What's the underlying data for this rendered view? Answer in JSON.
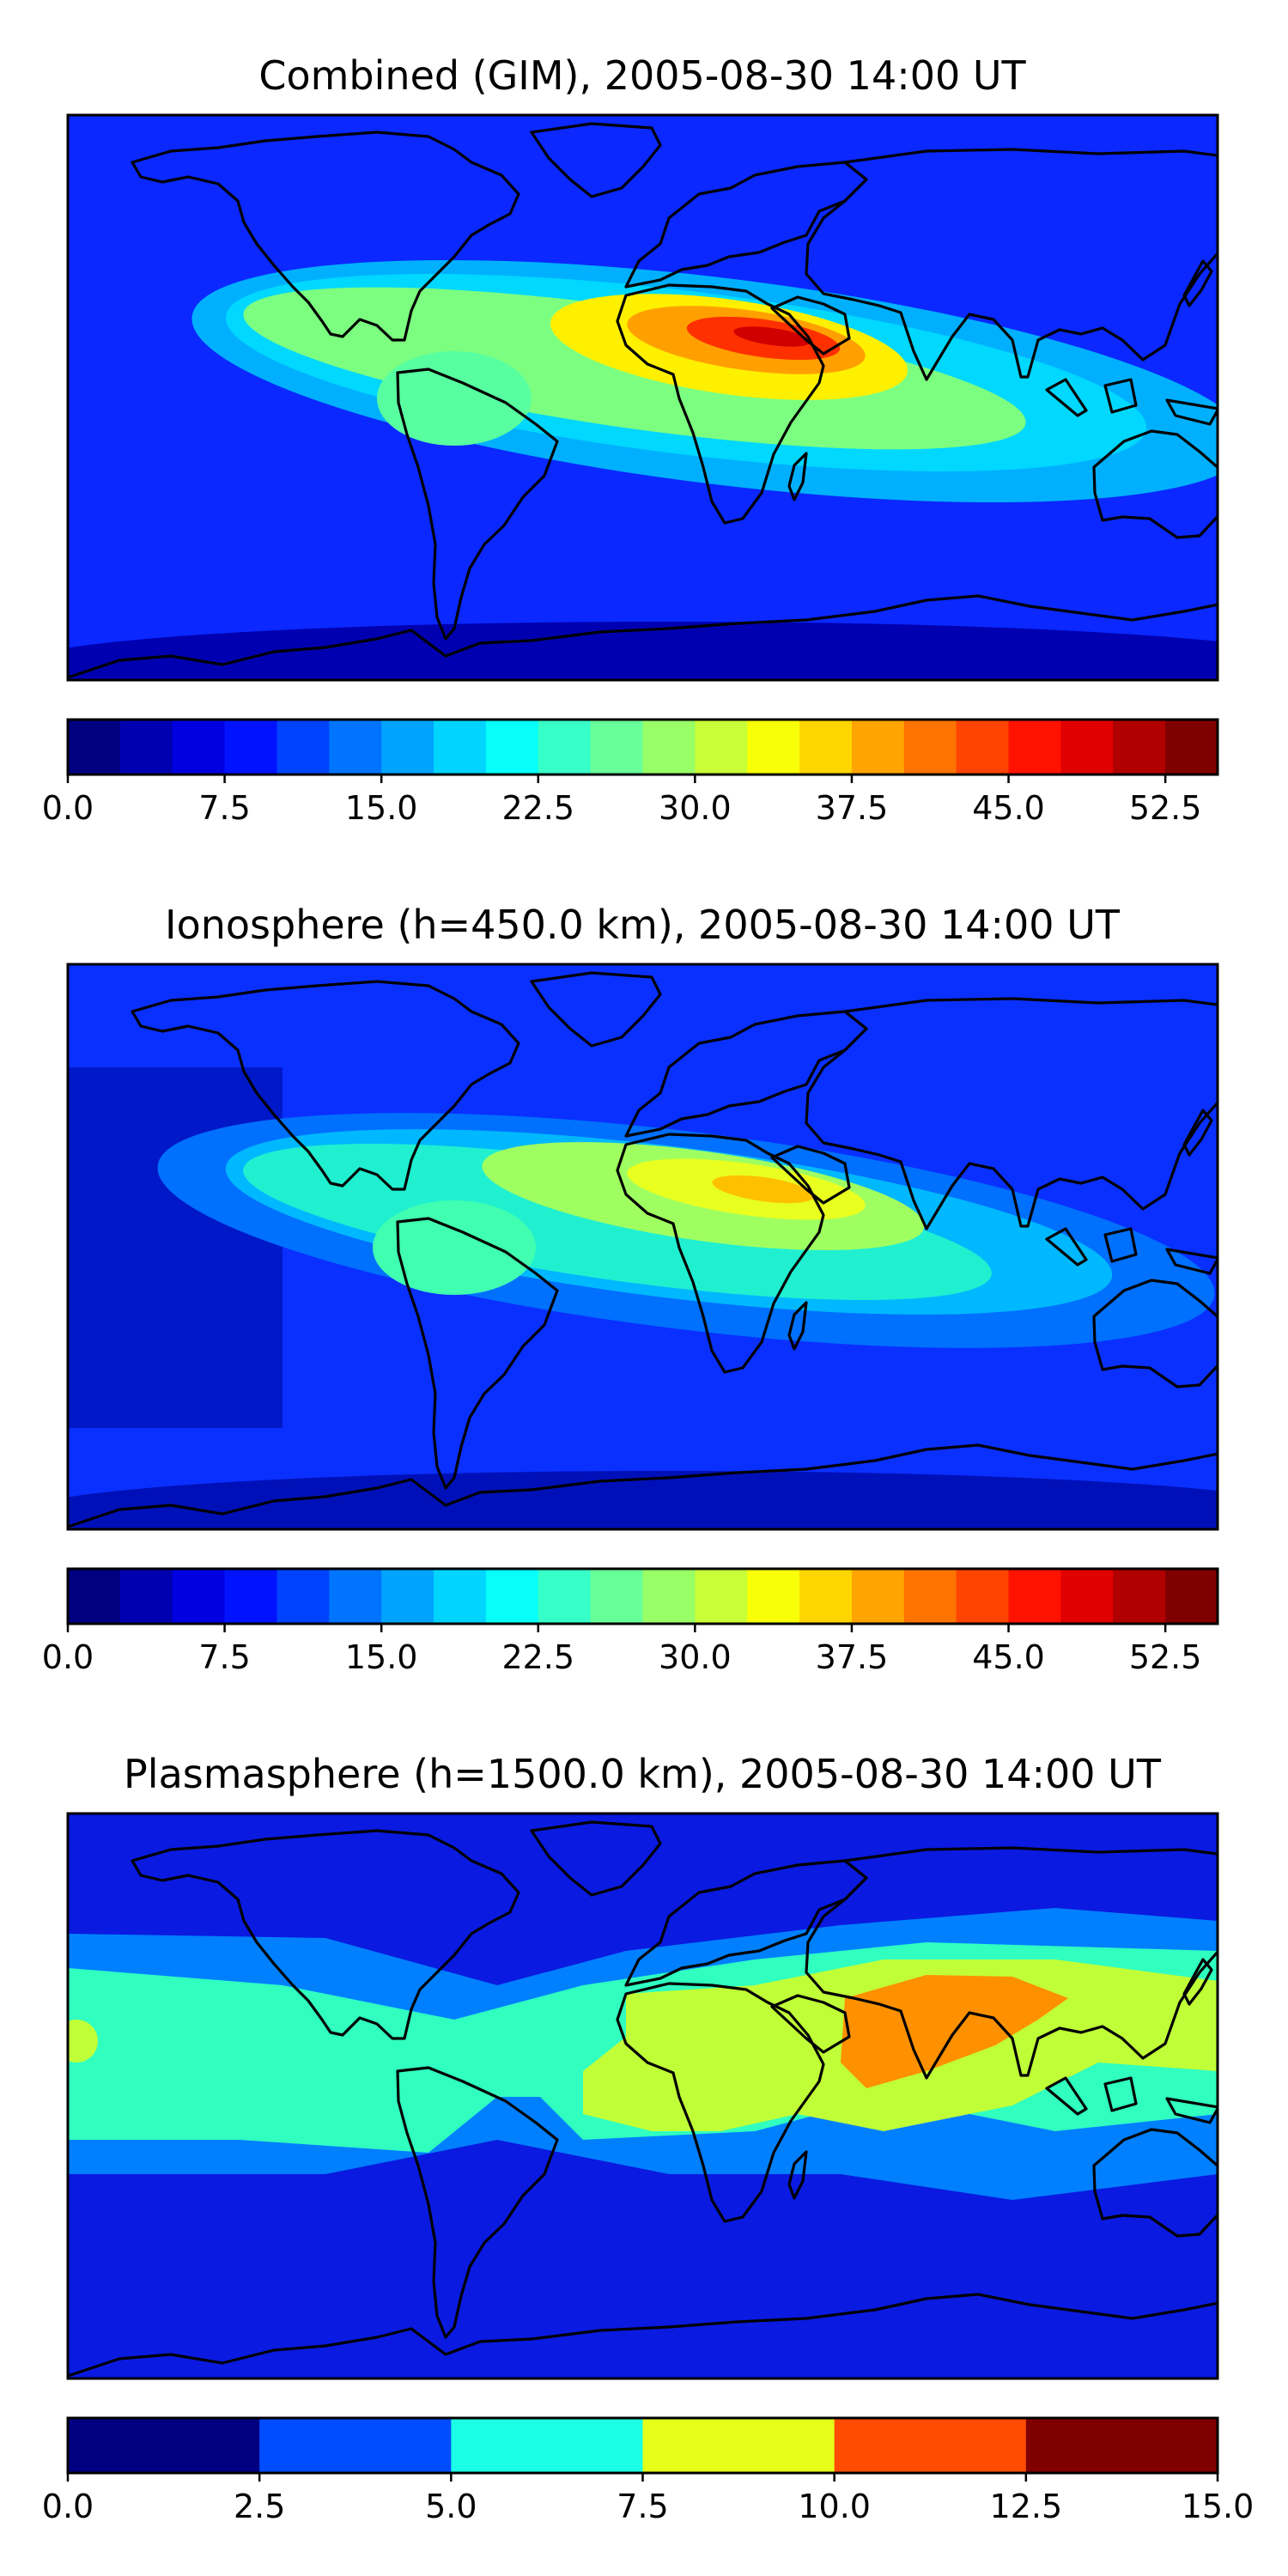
{
  "chart_data": [
    {
      "type": "heatmap",
      "title": "Combined (GIM), 2005-08-30 14:00 UT",
      "map": "world-coastlines",
      "colormap": "jet",
      "colorbar": {
        "levels": [
          0,
          2.5,
          5,
          7.5,
          10,
          12.5,
          15,
          17.5,
          20,
          22.5,
          25,
          27.5,
          30,
          32.5,
          35,
          37.5,
          40,
          42.5,
          45,
          47.5,
          50,
          52.5,
          55
        ],
        "tick_values": [
          0,
          7.5,
          15,
          22.5,
          30,
          37.5,
          45,
          52.5
        ],
        "tick_labels": [
          "0.0",
          "7.5",
          "15.0",
          "22.5",
          "30.0",
          "37.5",
          "45.0",
          "52.5"
        ]
      },
      "features": [
        {
          "name": "background",
          "value": 10
        },
        {
          "name": "equatorial-anomaly-outer",
          "value": 18
        },
        {
          "name": "equatorial-anomaly-mid",
          "value": 27
        },
        {
          "name": "north-africa-crest",
          "value": 36
        },
        {
          "name": "arabia-peak",
          "value": 49
        },
        {
          "name": "south-america-lobe",
          "value": 27
        },
        {
          "name": "southeast-asia-lobe",
          "value": 22
        },
        {
          "name": "polar-low-south",
          "value": 4
        }
      ]
    },
    {
      "type": "heatmap",
      "title": "Ionosphere  (h=450.0 km), 2005-08-30 14:00 UT",
      "map": "world-coastlines",
      "colormap": "jet",
      "colorbar": {
        "levels": [
          0,
          2.5,
          5,
          7.5,
          10,
          12.5,
          15,
          17.5,
          20,
          22.5,
          25,
          27.5,
          30,
          32.5,
          35,
          37.5,
          40,
          42.5,
          45,
          47.5,
          50,
          52.5,
          55
        ],
        "tick_values": [
          0,
          7.5,
          15,
          22.5,
          30,
          37.5,
          45,
          52.5
        ],
        "tick_labels": [
          "0.0",
          "7.5",
          "15.0",
          "22.5",
          "30.0",
          "37.5",
          "45.0",
          "52.5"
        ]
      },
      "features": [
        {
          "name": "background",
          "value": 8
        },
        {
          "name": "equatorial-anomaly-outer",
          "value": 16
        },
        {
          "name": "equatorial-anomaly-mid",
          "value": 24
        },
        {
          "name": "north-africa-crest",
          "value": 31
        },
        {
          "name": "arabia-peak",
          "value": 37
        },
        {
          "name": "south-america-lobe",
          "value": 24
        },
        {
          "name": "pacific-low",
          "value": 3
        }
      ]
    },
    {
      "type": "heatmap",
      "title": "Plasmasphere (h=1500.0 km), 2005-08-30 14:00 UT",
      "map": "world-coastlines",
      "colormap": "jet",
      "colorbar": {
        "levels": [
          0,
          2.5,
          5,
          7.5,
          10,
          12.5,
          15
        ],
        "tick_values": [
          0,
          2.5,
          5,
          7.5,
          10,
          12.5,
          15
        ],
        "tick_labels": [
          "0.0",
          "2.5",
          "5.0",
          "7.5",
          "10.0",
          "12.5",
          "15.0"
        ]
      },
      "features": [
        {
          "name": "background",
          "value": 1.5
        },
        {
          "name": "mid-latitude-band",
          "value": 4
        },
        {
          "name": "equatorial-band",
          "value": 6
        },
        {
          "name": "africa-asia-band",
          "value": 8.5
        },
        {
          "name": "india-china-peak",
          "value": 11
        }
      ]
    }
  ]
}
